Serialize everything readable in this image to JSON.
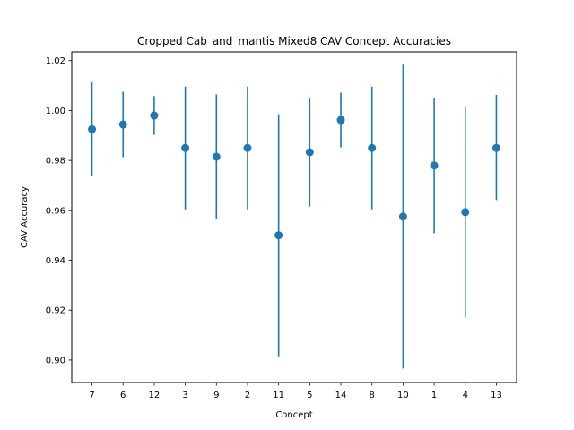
{
  "chart_data": {
    "type": "scatter",
    "title": "Cropped Cab_and_mantis Mixed8 CAV Concept Accuracies",
    "xlabel": "Concept",
    "ylabel": "CAV Accuracy",
    "categories": [
      "7",
      "6",
      "12",
      "3",
      "9",
      "2",
      "11",
      "5",
      "14",
      "8",
      "10",
      "1",
      "4",
      "13"
    ],
    "series": [
      {
        "values": [
          0.9925,
          0.9944,
          0.998,
          0.985,
          0.9815,
          0.985,
          0.95,
          0.9833,
          0.9962,
          0.985,
          0.9575,
          0.978,
          0.9593,
          0.985
        ],
        "error_low": [
          0.9737,
          0.9813,
          0.9902,
          0.9604,
          0.9565,
          0.9604,
          0.9015,
          0.9615,
          0.9852,
          0.9604,
          0.8966,
          0.9508,
          0.9171,
          0.9641
        ],
        "error_high": [
          1.0113,
          1.0075,
          1.0058,
          1.0096,
          1.0065,
          1.0096,
          0.9985,
          1.0051,
          1.0072,
          1.0096,
          1.0184,
          1.0052,
          1.0015,
          1.0063
        ],
        "color": "#1f77b4"
      }
    ],
    "ylim": [
      0.891,
      1.0235
    ],
    "yticks": [
      0.9,
      0.92,
      0.94,
      0.96,
      0.98,
      1.0,
      1.02
    ],
    "ytick_labels": [
      "0.90",
      "0.92",
      "0.94",
      "0.96",
      "0.98",
      "1.00",
      "1.02"
    ],
    "grid": false,
    "legend": "none"
  }
}
